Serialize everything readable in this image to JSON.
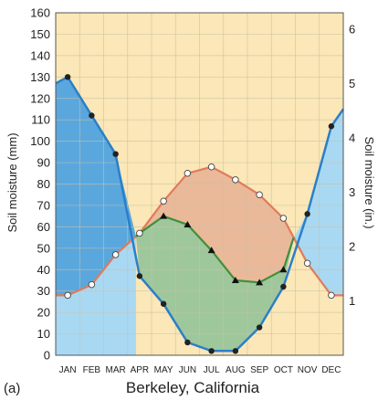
{
  "chart_data": {
    "type": "line",
    "title": "Berkeley, California",
    "panel_label": "(a)",
    "ylabel": "Soil moisture (mm)",
    "ylabel_right": "Soil moisture (in.)",
    "ylim": [
      0,
      160
    ],
    "yticks": [
      0,
      10,
      20,
      30,
      40,
      50,
      60,
      70,
      80,
      90,
      100,
      110,
      120,
      130,
      140,
      150,
      160
    ],
    "ylim_right": [
      0,
      6.3
    ],
    "yticks_right": [
      1,
      2,
      3,
      4,
      5,
      6
    ],
    "categories": [
      "JAN",
      "FEB",
      "MAR",
      "APR",
      "MAY",
      "JUN",
      "JUL",
      "AUG",
      "SEP",
      "OCT",
      "NOV",
      "DEC"
    ],
    "grid": true,
    "series": [
      {
        "key": "precip",
        "color": "#2a7fc9",
        "marker": "dot",
        "values": [
          130,
          112,
          94,
          37,
          24,
          6,
          2,
          2,
          13,
          32,
          66,
          107
        ]
      },
      {
        "key": "potential_et",
        "color": "#e07b5a",
        "marker": "open-circle",
        "values": [
          28,
          33,
          47,
          57,
          72,
          85,
          88,
          82,
          75,
          64,
          43,
          28
        ]
      },
      {
        "key": "actual_et",
        "color": "#3f8f3a",
        "marker": "triangle",
        "values": [
          null,
          null,
          null,
          57,
          65,
          61,
          49,
          35,
          34,
          40,
          null,
          null
        ]
      }
    ],
    "colors": {
      "background": "#fbe7b7",
      "grid": "#c9c2a6",
      "surplus": "#5aa7dd",
      "recharge": "#a9d8f2",
      "utilization": "#9fc79c",
      "deficit": "#e9b99a",
      "precip_line": "#2a7fc9",
      "potential_line": "#e07b5a",
      "actual_line": "#3f8f3a"
    }
  }
}
